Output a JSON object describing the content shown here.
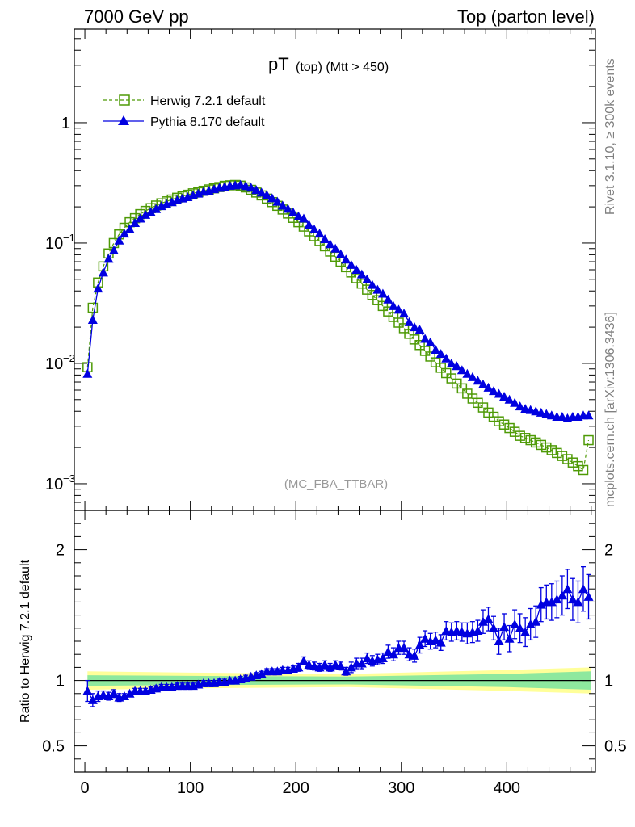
{
  "header": {
    "left": "7000 GeV pp",
    "right": "Top (parton level)"
  },
  "side": {
    "rivet": "Rivet 3.1.10, ≥ 300k events",
    "mcplots": "mcplots.cern.ch [arXiv:1306.3436]"
  },
  "chart_data": {
    "type": "line",
    "title_main": "pT",
    "title_sub": "(top) (Mtt > 450)",
    "analysis_label": "(MC_FBA_TTBAR)",
    "ratio_ylabel": "Ratio to Herwig 7.2.1 default",
    "x_range": [
      -10,
      484
    ],
    "x_ticks": [
      0,
      100,
      200,
      300,
      400
    ],
    "x_tick_labels": [
      "0",
      "100",
      "200",
      "300",
      "400"
    ],
    "main_yscale": "log",
    "main_ylim": [
      0.0006,
      6
    ],
    "main_y_ticks": [
      0.001,
      0.01,
      0.1,
      1
    ],
    "main_y_tick_labels": [
      [
        "10",
        "−3"
      ],
      [
        "10",
        "−2"
      ],
      [
        "10",
        "−1"
      ],
      [
        "1",
        ""
      ]
    ],
    "ratio_ylim": [
      0.3,
      2.3
    ],
    "ratio_y_ticks": [
      0.5,
      1,
      2
    ],
    "ratio_y_tick_labels": [
      "0.5",
      "1",
      "2"
    ],
    "legend": [
      "Herwig 7.2.1 default",
      "Pythia 8.170 default"
    ],
    "colors": {
      "herwig": "#4e9a06",
      "pythia": "#0000e0",
      "band_inner": "#8ee89e",
      "band_outer": "#ffff99"
    },
    "x": [
      2.5,
      7.5,
      12.5,
      17.5,
      22.5,
      27.5,
      32.5,
      37.5,
      42.5,
      47.5,
      52.5,
      57.5,
      62.5,
      67.5,
      72.5,
      77.5,
      82.5,
      87.5,
      92.5,
      97.5,
      102.5,
      107.5,
      112.5,
      117.5,
      122.5,
      127.5,
      132.5,
      137.5,
      142.5,
      147.5,
      152.5,
      157.5,
      162.5,
      167.5,
      172.5,
      177.5,
      182.5,
      187.5,
      192.5,
      197.5,
      202.5,
      207.5,
      212.5,
      217.5,
      222.5,
      227.5,
      232.5,
      237.5,
      242.5,
      247.5,
      252.5,
      257.5,
      262.5,
      267.5,
      272.5,
      277.5,
      282.5,
      287.5,
      292.5,
      297.5,
      302.5,
      307.5,
      312.5,
      317.5,
      322.5,
      327.5,
      332.5,
      337.5,
      342.5,
      347.5,
      352.5,
      357.5,
      362.5,
      367.5,
      372.5,
      377.5,
      382.5,
      387.5,
      392.5,
      397.5,
      402.5,
      407.5,
      412.5,
      417.5,
      422.5,
      427.5,
      432.5,
      437.5,
      442.5,
      447.5,
      452.5,
      457.5,
      462.5,
      467.5,
      472.5,
      477.5
    ],
    "herwig": [
      0.0093,
      0.029,
      0.047,
      0.064,
      0.082,
      0.1,
      0.118,
      0.134,
      0.149,
      0.161,
      0.174,
      0.185,
      0.195,
      0.205,
      0.214,
      0.222,
      0.23,
      0.238,
      0.245,
      0.252,
      0.259,
      0.265,
      0.272,
      0.279,
      0.285,
      0.292,
      0.299,
      0.302,
      0.304,
      0.3,
      0.29,
      0.277,
      0.263,
      0.249,
      0.234,
      0.219,
      0.204,
      0.19,
      0.176,
      0.162,
      0.149,
      0.137,
      0.125,
      0.114,
      0.104,
      0.094,
      0.085,
      0.077,
      0.07,
      0.063,
      0.057,
      0.051,
      0.046,
      0.041,
      0.037,
      0.0335,
      0.03,
      0.027,
      0.0243,
      0.0218,
      0.0196,
      0.0176,
      0.0158,
      0.0142,
      0.0127,
      0.0114,
      0.0102,
      0.0092,
      0.0083,
      0.0075,
      0.0068,
      0.0062,
      0.0056,
      0.0051,
      0.0047,
      0.0043,
      0.0039,
      0.0036,
      0.0033,
      0.0031,
      0.0029,
      0.0027,
      0.0025,
      0.0024,
      0.0023,
      0.0022,
      0.0021,
      0.002,
      0.0019,
      0.0018,
      0.0017,
      0.0016,
      0.0015,
      0.0014,
      0.0013,
      0.0023
    ],
    "pythia": [
      0.0082,
      0.023,
      0.042,
      0.057,
      0.074,
      0.087,
      0.105,
      0.12,
      0.131,
      0.147,
      0.16,
      0.172,
      0.181,
      0.192,
      0.203,
      0.211,
      0.219,
      0.227,
      0.235,
      0.241,
      0.249,
      0.258,
      0.267,
      0.273,
      0.281,
      0.288,
      0.294,
      0.3,
      0.302,
      0.305,
      0.298,
      0.289,
      0.276,
      0.263,
      0.251,
      0.236,
      0.221,
      0.205,
      0.193,
      0.18,
      0.167,
      0.16,
      0.142,
      0.13,
      0.12,
      0.108,
      0.098,
      0.09,
      0.081,
      0.073,
      0.066,
      0.06,
      0.055,
      0.05,
      0.045,
      0.041,
      0.038,
      0.034,
      0.03,
      0.028,
      0.026,
      0.022,
      0.02,
      0.019,
      0.016,
      0.015,
      0.013,
      0.012,
      0.011,
      0.01,
      0.0095,
      0.0088,
      0.0082,
      0.0077,
      0.0072,
      0.0067,
      0.0063,
      0.0059,
      0.0056,
      0.0053,
      0.005,
      0.0047,
      0.0044,
      0.0042,
      0.0041,
      0.004,
      0.0039,
      0.0038,
      0.0037,
      0.0036,
      0.0036,
      0.0035,
      0.0036,
      0.0036,
      0.0037,
      0.0037
    ],
    "ratio": [
      0.92,
      0.85,
      0.88,
      0.89,
      0.88,
      0.9,
      0.87,
      0.88,
      0.9,
      0.92,
      0.92,
      0.92,
      0.93,
      0.94,
      0.95,
      0.95,
      0.95,
      0.96,
      0.96,
      0.96,
      0.96,
      0.97,
      0.98,
      0.98,
      0.98,
      0.99,
      0.99,
      1.0,
      1.0,
      1.01,
      1.02,
      1.03,
      1.04,
      1.05,
      1.07,
      1.07,
      1.07,
      1.08,
      1.08,
      1.09,
      1.1,
      1.15,
      1.12,
      1.11,
      1.1,
      1.12,
      1.1,
      1.12,
      1.11,
      1.07,
      1.1,
      1.13,
      1.13,
      1.17,
      1.15,
      1.16,
      1.17,
      1.22,
      1.2,
      1.25,
      1.25,
      1.2,
      1.19,
      1.27,
      1.32,
      1.3,
      1.31,
      1.29,
      1.38,
      1.37,
      1.38,
      1.37,
      1.36,
      1.37,
      1.38,
      1.45,
      1.47,
      1.4,
      1.3,
      1.41,
      1.32,
      1.43,
      1.4,
      1.37,
      1.43,
      1.45,
      1.58,
      1.6,
      1.6,
      1.62,
      1.65,
      1.7,
      1.62,
      1.6,
      1.7,
      1.64
    ],
    "ratio_err": [
      0.08,
      0.05,
      0.04,
      0.03,
      0.03,
      0.03,
      0.03,
      0.02,
      0.02,
      0.02,
      0.02,
      0.02,
      0.02,
      0.02,
      0.02,
      0.02,
      0.02,
      0.02,
      0.02,
      0.02,
      0.02,
      0.02,
      0.02,
      0.02,
      0.02,
      0.02,
      0.02,
      0.02,
      0.02,
      0.02,
      0.02,
      0.02,
      0.02,
      0.02,
      0.02,
      0.02,
      0.02,
      0.02,
      0.02,
      0.02,
      0.03,
      0.03,
      0.03,
      0.03,
      0.03,
      0.03,
      0.03,
      0.03,
      0.03,
      0.03,
      0.04,
      0.04,
      0.04,
      0.04,
      0.04,
      0.04,
      0.04,
      0.05,
      0.05,
      0.05,
      0.05,
      0.05,
      0.05,
      0.06,
      0.06,
      0.06,
      0.06,
      0.06,
      0.07,
      0.07,
      0.07,
      0.07,
      0.08,
      0.08,
      0.08,
      0.09,
      0.09,
      0.09,
      0.1,
      0.1,
      0.1,
      0.11,
      0.11,
      0.11,
      0.12,
      0.12,
      0.13,
      0.13,
      0.14,
      0.14,
      0.15,
      0.15,
      0.16,
      0.16,
      0.17,
      0.17
    ],
    "band_inner": [
      0.04,
      0.035,
      0.03,
      0.05,
      0.07
    ],
    "band_outer": [
      0.07,
      0.06,
      0.05,
      0.08,
      0.1
    ],
    "band_x": [
      2.5,
      100,
      250,
      400,
      480
    ]
  }
}
